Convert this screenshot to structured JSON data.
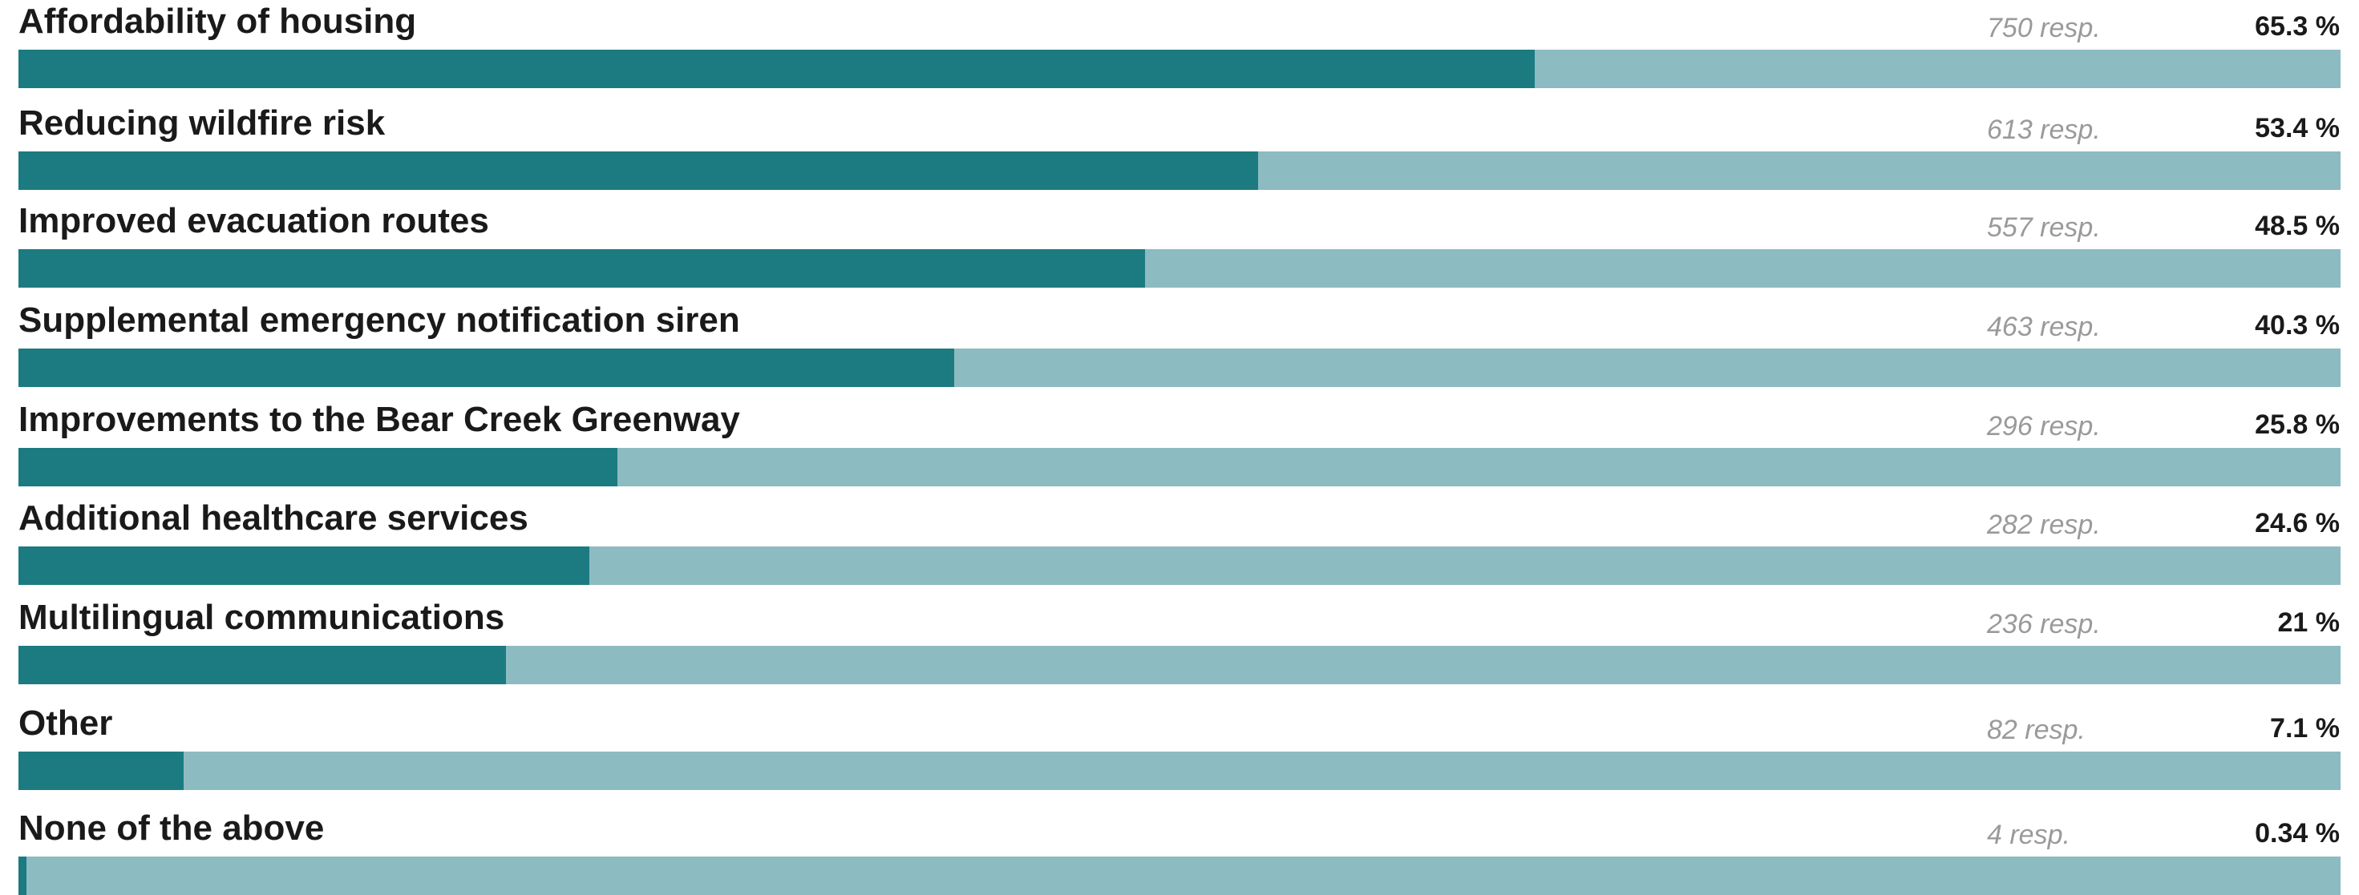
{
  "chart_data": {
    "type": "bar",
    "orientation": "horizontal",
    "max": 100,
    "colors": {
      "fill": "#1b7b81",
      "track": "#8cbbc1",
      "label": "#1a1a1a",
      "responses": "#9a9a9a"
    },
    "rows": [
      {
        "label": "Affordability of housing",
        "responses": "750 resp.",
        "percent_label": "65.3 %",
        "value": 65.3
      },
      {
        "label": "Reducing wildfire risk",
        "responses": "613 resp.",
        "percent_label": "53.4 %",
        "value": 53.4
      },
      {
        "label": "Improved evacuation routes",
        "responses": "557 resp.",
        "percent_label": "48.5 %",
        "value": 48.5
      },
      {
        "label": "Supplemental emergency notification siren",
        "responses": "463 resp.",
        "percent_label": "40.3 %",
        "value": 40.3
      },
      {
        "label": "Improvements to the Bear Creek Greenway",
        "responses": "296 resp.",
        "percent_label": "25.8 %",
        "value": 25.8
      },
      {
        "label": "Additional healthcare services",
        "responses": "282 resp.",
        "percent_label": "24.6 %",
        "value": 24.6
      },
      {
        "label": "Multilingual communications",
        "responses": "236 resp.",
        "percent_label": "21 %",
        "value": 21
      },
      {
        "label": "Other",
        "responses": "82 resp.",
        "percent_label": "7.1 %",
        "value": 7.1
      },
      {
        "label": "None of the above",
        "responses": "4 resp.",
        "percent_label": "0.34 %",
        "value": 0.34
      }
    ]
  }
}
